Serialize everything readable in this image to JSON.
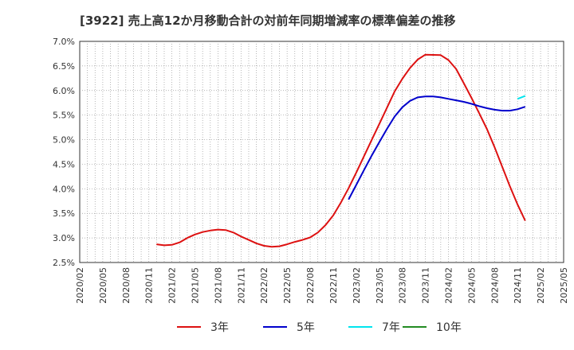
{
  "chart_data": {
    "type": "line",
    "title": "[3922]  売上高12か月移動合計の対前年同期増減率の標準偏差の推移",
    "xlabel": "",
    "ylabel": "",
    "ylim": [
      2.5,
      7.0
    ],
    "y_ticks": [
      "2.5%",
      "3.0%",
      "3.5%",
      "4.0%",
      "4.5%",
      "5.0%",
      "5.5%",
      "6.0%",
      "6.5%",
      "7.0%"
    ],
    "x_ticks": [
      "2020/02",
      "2020/05",
      "2020/08",
      "2020/11",
      "2021/02",
      "2021/05",
      "2021/08",
      "2021/11",
      "2022/02",
      "2022/05",
      "2022/08",
      "2022/11",
      "2023/02",
      "2023/05",
      "2023/08",
      "2023/11",
      "2024/02",
      "2024/05",
      "2024/08",
      "2024/11",
      "2025/02",
      "2025/05"
    ],
    "grid": true,
    "legend_position": "bottom",
    "series": [
      {
        "name": "3年",
        "color": "#dd1111",
        "points": [
          [
            "2020/12",
            2.87
          ],
          [
            "2021/01",
            2.85
          ],
          [
            "2021/02",
            2.86
          ],
          [
            "2021/03",
            2.91
          ],
          [
            "2021/04",
            3.0
          ],
          [
            "2021/05",
            3.07
          ],
          [
            "2021/06",
            3.12
          ],
          [
            "2021/07",
            3.15
          ],
          [
            "2021/08",
            3.17
          ],
          [
            "2021/09",
            3.16
          ],
          [
            "2021/10",
            3.11
          ],
          [
            "2021/11",
            3.03
          ],
          [
            "2021/12",
            2.96
          ],
          [
            "2022/01",
            2.89
          ],
          [
            "2022/02",
            2.84
          ],
          [
            "2022/03",
            2.82
          ],
          [
            "2022/04",
            2.83
          ],
          [
            "2022/05",
            2.87
          ],
          [
            "2022/06",
            2.92
          ],
          [
            "2022/07",
            2.96
          ],
          [
            "2022/08",
            3.01
          ],
          [
            "2022/09",
            3.11
          ],
          [
            "2022/10",
            3.26
          ],
          [
            "2022/11",
            3.46
          ],
          [
            "2022/12",
            3.72
          ],
          [
            "2023/01",
            4.01
          ],
          [
            "2023/02",
            4.33
          ],
          [
            "2023/03",
            4.66
          ],
          [
            "2023/04",
            4.99
          ],
          [
            "2023/05",
            5.32
          ],
          [
            "2023/06",
            5.65
          ],
          [
            "2023/07",
            5.98
          ],
          [
            "2023/08",
            6.24
          ],
          [
            "2023/09",
            6.46
          ],
          [
            "2023/10",
            6.63
          ],
          [
            "2023/11",
            6.73
          ],
          [
            "2024/01",
            6.72
          ],
          [
            "2024/02",
            6.62
          ],
          [
            "2024/03",
            6.44
          ],
          [
            "2024/04",
            6.15
          ],
          [
            "2024/05",
            5.85
          ],
          [
            "2024/06",
            5.54
          ],
          [
            "2024/07",
            5.22
          ],
          [
            "2024/08",
            4.85
          ],
          [
            "2024/09",
            4.45
          ],
          [
            "2024/10",
            4.05
          ],
          [
            "2024/11",
            3.68
          ],
          [
            "2024/12",
            3.35
          ]
        ]
      },
      {
        "name": "5年",
        "color": "#0000cc",
        "points": [
          [
            "2023/01",
            3.78
          ],
          [
            "2023/02",
            4.08
          ],
          [
            "2023/03",
            4.38
          ],
          [
            "2023/04",
            4.67
          ],
          [
            "2023/05",
            4.95
          ],
          [
            "2023/06",
            5.22
          ],
          [
            "2023/07",
            5.47
          ],
          [
            "2023/08",
            5.66
          ],
          [
            "2023/09",
            5.79
          ],
          [
            "2023/10",
            5.86
          ],
          [
            "2023/11",
            5.88
          ],
          [
            "2023/12",
            5.88
          ],
          [
            "2024/01",
            5.86
          ],
          [
            "2024/02",
            5.83
          ],
          [
            "2024/03",
            5.8
          ],
          [
            "2024/04",
            5.77
          ],
          [
            "2024/05",
            5.73
          ],
          [
            "2024/06",
            5.68
          ],
          [
            "2024/07",
            5.64
          ],
          [
            "2024/08",
            5.61
          ],
          [
            "2024/09",
            5.59
          ],
          [
            "2024/10",
            5.59
          ],
          [
            "2024/11",
            5.62
          ],
          [
            "2024/12",
            5.67
          ]
        ]
      },
      {
        "name": "7年",
        "color": "#00e5ee",
        "points": [
          [
            "2024/11",
            5.83
          ],
          [
            "2024/12",
            5.89
          ]
        ]
      },
      {
        "name": "10年",
        "color": "#228b22",
        "points": []
      }
    ]
  }
}
